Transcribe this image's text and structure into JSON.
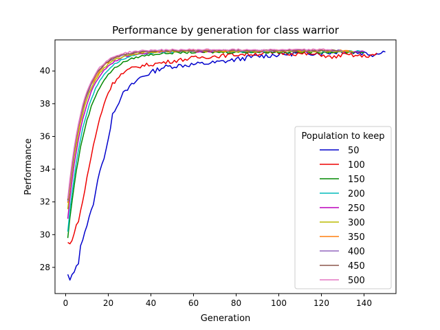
{
  "chart_data": {
    "type": "line",
    "title": "Performance by generation for class warrior",
    "xlabel": "Generation",
    "ylabel": "Performance",
    "xlim": [
      -5,
      155
    ],
    "ylim": [
      26.4,
      41.9
    ],
    "xticks": [
      0,
      20,
      40,
      60,
      80,
      100,
      120,
      140
    ],
    "yticks": [
      28,
      30,
      32,
      34,
      36,
      38,
      40
    ],
    "grid": false,
    "legend": {
      "title": "Population to keep",
      "placement": "lower-right"
    },
    "series": [
      {
        "name": "50",
        "color": "#0000cc",
        "start": 27.5,
        "end_x": 150,
        "plateau": 41.2,
        "tau": 18.0,
        "noise": 0.15,
        "points": [
          [
            1,
            27.5
          ],
          [
            2,
            27.2
          ],
          [
            4,
            27.7
          ],
          [
            5,
            28.2
          ],
          [
            6,
            28.1
          ],
          [
            7,
            29.4
          ],
          [
            8,
            29.8
          ],
          [
            10,
            30.6
          ],
          [
            12,
            31.4
          ],
          [
            14,
            32.5
          ],
          [
            16,
            34.0
          ],
          [
            18,
            34.7
          ],
          [
            20,
            35.7
          ],
          [
            22,
            37.5
          ],
          [
            24,
            37.8
          ],
          [
            26,
            38.5
          ],
          [
            28,
            38.7
          ],
          [
            30,
            39.0
          ],
          [
            35,
            39.6
          ],
          [
            40,
            39.9
          ],
          [
            45,
            40.2
          ],
          [
            50,
            40.3
          ],
          [
            60,
            40.4
          ],
          [
            70,
            40.5
          ],
          [
            80,
            40.7
          ],
          [
            90,
            40.9
          ],
          [
            100,
            41.0
          ],
          [
            110,
            41.1
          ],
          [
            120,
            41.1
          ],
          [
            130,
            41.2
          ],
          [
            140,
            41.1
          ],
          [
            145,
            41.0
          ],
          [
            148,
            41.2
          ],
          [
            150,
            41.2
          ]
        ]
      },
      {
        "name": "100",
        "color": "#ee0000",
        "start": 29.5,
        "end_x": 146,
        "plateau": 41.1,
        "tau": 12.0,
        "noise": 0.12,
        "points": [
          [
            1,
            29.5
          ],
          [
            2,
            29.4
          ],
          [
            4,
            30.1
          ],
          [
            6,
            30.9
          ],
          [
            8,
            32.0
          ],
          [
            10,
            33.5
          ],
          [
            12,
            34.8
          ],
          [
            14,
            36.0
          ],
          [
            16,
            37.1
          ],
          [
            18,
            38.0
          ],
          [
            20,
            38.7
          ],
          [
            22,
            39.2
          ],
          [
            25,
            39.7
          ],
          [
            30,
            40.1
          ],
          [
            35,
            40.3
          ],
          [
            40,
            40.4
          ],
          [
            50,
            40.6
          ],
          [
            60,
            40.8
          ],
          [
            70,
            40.9
          ],
          [
            80,
            41.0
          ],
          [
            100,
            41.1
          ],
          [
            120,
            41.0
          ],
          [
            125,
            40.8
          ],
          [
            130,
            41.0
          ],
          [
            140,
            40.9
          ],
          [
            146,
            41.0
          ]
        ]
      },
      {
        "name": "150",
        "color": "#008800",
        "start": 29.8,
        "end_x": 140,
        "plateau": 41.15,
        "tau": 9.0,
        "noise": 0.06,
        "points": []
      },
      {
        "name": "200",
        "color": "#00bbbb",
        "start": 30.2,
        "end_x": 140,
        "plateau": 41.2,
        "tau": 8.3,
        "noise": 0.05,
        "points": []
      },
      {
        "name": "250",
        "color": "#bb00bb",
        "start": 31.0,
        "end_x": 140,
        "plateau": 41.2,
        "tau": 7.8,
        "noise": 0.05,
        "points": []
      },
      {
        "name": "300",
        "color": "#bbbb00",
        "start": 31.6,
        "end_x": 135,
        "plateau": 41.2,
        "tau": 7.6,
        "noise": 0.05,
        "points": []
      },
      {
        "name": "350",
        "color": "#ff7f0e",
        "start": 31.9,
        "end_x": 133,
        "plateau": 41.25,
        "tau": 7.4,
        "noise": 0.05,
        "points": []
      },
      {
        "name": "400",
        "color": "#9467bd",
        "start": 32.0,
        "end_x": 130,
        "plateau": 41.25,
        "tau": 7.3,
        "noise": 0.05,
        "points": []
      },
      {
        "name": "450",
        "color": "#8c564b",
        "start": 32.1,
        "end_x": 128,
        "plateau": 41.25,
        "tau": 7.2,
        "noise": 0.05,
        "points": []
      },
      {
        "name": "500",
        "color": "#e377c2",
        "start": 32.2,
        "end_x": 125,
        "plateau": 41.3,
        "tau": 7.1,
        "noise": 0.05,
        "points": []
      }
    ]
  }
}
